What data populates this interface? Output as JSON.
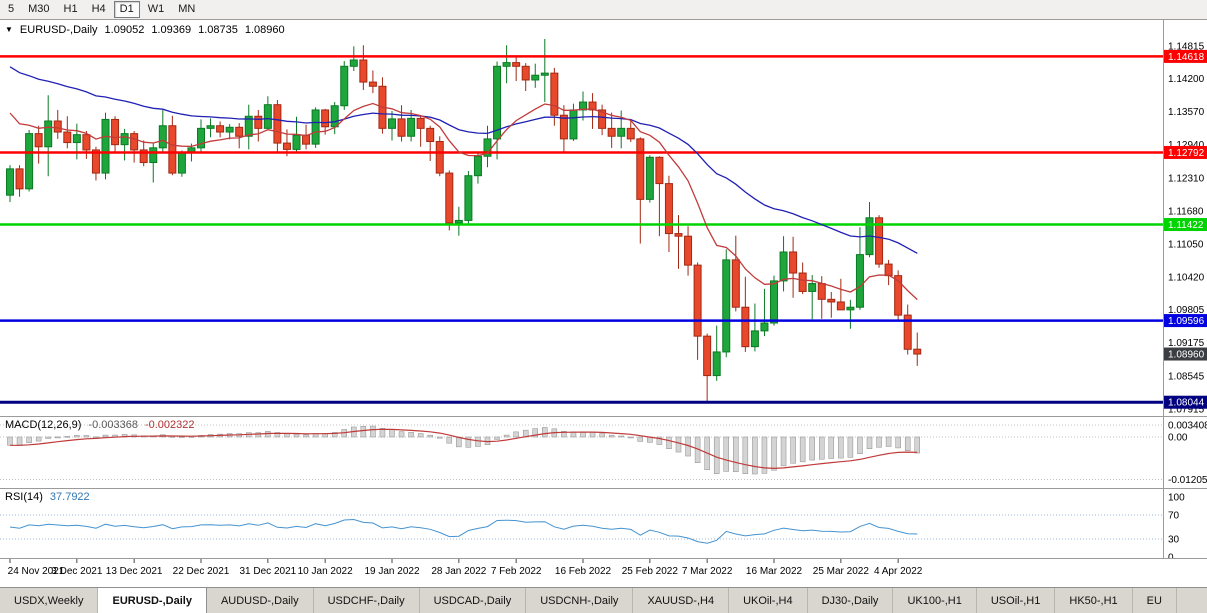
{
  "toolbar": {
    "timeframes": [
      {
        "label": "5",
        "active": false
      },
      {
        "label": "M30",
        "active": false
      },
      {
        "label": "H1",
        "active": false
      },
      {
        "label": "H4",
        "active": false
      },
      {
        "label": "D1",
        "active": true
      },
      {
        "label": "W1",
        "active": false
      },
      {
        "label": "MN",
        "active": false
      }
    ]
  },
  "chart_header": {
    "symbol": "EURUSD-,Daily",
    "open": "1.09052",
    "high": "1.09369",
    "low": "1.08735",
    "close": "1.08960"
  },
  "indicators": {
    "macd": {
      "name": "MACD(12,26,9)",
      "value_main": "-0.003368",
      "value_signal": "-0.002322",
      "axis": [
        {
          "text": "0.003408",
          "value": 0.003408
        },
        {
          "text": "0.00",
          "value": 0
        },
        {
          "text": "-0.012058",
          "value": -0.012058
        }
      ]
    },
    "rsi": {
      "name": "RSI(14)",
      "value": "37.7922",
      "axis": [
        {
          "text": "100",
          "value": 100
        },
        {
          "text": "70",
          "value": 70
        },
        {
          "text": "30",
          "value": 30
        },
        {
          "text": "0",
          "value": 0
        }
      ],
      "levels": [
        70,
        30
      ]
    }
  },
  "price_axis": {
    "ticks": [
      {
        "text": "1.14815",
        "value": 1.14815
      },
      {
        "text": "1.14200",
        "value": 1.142
      },
      {
        "text": "1.13570",
        "value": 1.1357
      },
      {
        "text": "1.12940",
        "value": 1.1294
      },
      {
        "text": "1.12310",
        "value": 1.1231
      },
      {
        "text": "1.11680",
        "value": 1.1168
      },
      {
        "text": "1.11050",
        "value": 1.1105
      },
      {
        "text": "1.10420",
        "value": 1.1042
      },
      {
        "text": "1.09805",
        "value": 1.09805
      },
      {
        "text": "1.09175",
        "value": 1.09175
      },
      {
        "text": "1.08545",
        "value": 1.08545
      },
      {
        "text": "1.07915",
        "value": 1.07915
      }
    ]
  },
  "chart_data": {
    "type": "candlestick",
    "symbol": "EURUSD",
    "timeframe": "Daily",
    "plot": {
      "pmax": 1.1531,
      "pmin": 1.0782
    },
    "colors": {
      "bull": "#1ea53c",
      "bull_border": "#0b7a24",
      "bear": "#e8482c",
      "bear_border": "#a32812"
    },
    "hlines": [
      {
        "price": 1.14618,
        "label": "1.14618",
        "color": "#ff0000",
        "width": 2.5
      },
      {
        "price": 1.12792,
        "label": "1.12792",
        "color": "#ff0000",
        "width": 2.5
      },
      {
        "price": 1.11422,
        "label": "1.11422",
        "color": "#00d400",
        "width": 2.5
      },
      {
        "price": 1.09596,
        "label": "1.09596",
        "color": "#0202e0",
        "width": 2.5
      },
      {
        "price": 1.08044,
        "label": "1.08044",
        "color": "#000080",
        "width": 3
      }
    ],
    "current_price": {
      "price": 1.0896,
      "label": "1.08960",
      "color": "#3a3d42"
    },
    "moving_averages": [
      {
        "name": "ma-slow-line",
        "period": 40,
        "seed": 1.1452,
        "color": "#2020b4"
      },
      {
        "name": "ma-fast-line",
        "period": 13,
        "seed": 1.1372,
        "color": "#c23b3b"
      }
    ],
    "macd_settings": {
      "fast": 12,
      "slow": 26,
      "signal": 9,
      "seed_fast_offset": -0.0008,
      "seed_slow_offset": 0.0018,
      "hist_color": "#d4d4d4",
      "hist_border": "#8c8c8c",
      "signal_color": "#c03a3a"
    },
    "rsi_settings": {
      "period": 14,
      "color": "#4593d0",
      "seed_gain": 0.0035,
      "seed_loss": 0.0035
    },
    "x_labels": [
      {
        "text": "24 Nov 2021",
        "bar": 0
      },
      {
        "text": "3 Dec 2021",
        "bar": 7
      },
      {
        "text": "13 Dec 2021",
        "bar": 13
      },
      {
        "text": "22 Dec 2021",
        "bar": 20
      },
      {
        "text": "31 Dec 2021",
        "bar": 27
      },
      {
        "text": "10 Jan 2022",
        "bar": 33
      },
      {
        "text": "19 Jan 2022",
        "bar": 40
      },
      {
        "text": "28 Jan 2022",
        "bar": 47
      },
      {
        "text": "7 Feb 2022",
        "bar": 53
      },
      {
        "text": "16 Feb 2022",
        "bar": 60
      },
      {
        "text": "25 Feb 2022",
        "bar": 67
      },
      {
        "text": "7 Mar 2022",
        "bar": 73
      },
      {
        "text": "16 Mar 2022",
        "bar": 80
      },
      {
        "text": "25 Mar 2022",
        "bar": 87
      },
      {
        "text": "4 Apr 2022",
        "bar": 93
      }
    ],
    "candles": [
      [
        1.1198,
        1.1255,
        1.1185,
        1.1248
      ],
      [
        1.1248,
        1.1255,
        1.1195,
        1.121
      ],
      [
        1.121,
        1.1322,
        1.1205,
        1.1315
      ],
      [
        1.1315,
        1.133,
        1.1258,
        1.129
      ],
      [
        1.129,
        1.1388,
        1.1234,
        1.1339
      ],
      [
        1.1339,
        1.136,
        1.1305,
        1.1318
      ],
      [
        1.1318,
        1.1348,
        1.1287,
        1.1298
      ],
      [
        1.1298,
        1.1334,
        1.1266,
        1.1313
      ],
      [
        1.1313,
        1.132,
        1.1267,
        1.1284
      ],
      [
        1.1284,
        1.129,
        1.1226,
        1.124
      ],
      [
        1.124,
        1.1355,
        1.1228,
        1.1342
      ],
      [
        1.1342,
        1.1348,
        1.128,
        1.1294
      ],
      [
        1.1294,
        1.1324,
        1.1264,
        1.1315
      ],
      [
        1.1315,
        1.132,
        1.126,
        1.1284
      ],
      [
        1.1284,
        1.1302,
        1.1253,
        1.126
      ],
      [
        1.126,
        1.1298,
        1.1222,
        1.1288
      ],
      [
        1.1288,
        1.136,
        1.128,
        1.133
      ],
      [
        1.133,
        1.1349,
        1.1236,
        1.124
      ],
      [
        1.124,
        1.1283,
        1.1233,
        1.128
      ],
      [
        1.128,
        1.1296,
        1.1262,
        1.1288
      ],
      [
        1.1288,
        1.1342,
        1.1279,
        1.1325
      ],
      [
        1.1325,
        1.1344,
        1.1308,
        1.133
      ],
      [
        1.133,
        1.1338,
        1.1308,
        1.1318
      ],
      [
        1.1318,
        1.1333,
        1.1304,
        1.1327
      ],
      [
        1.1327,
        1.1335,
        1.1287,
        1.131
      ],
      [
        1.131,
        1.137,
        1.1285,
        1.1348
      ],
      [
        1.1348,
        1.136,
        1.13,
        1.1325
      ],
      [
        1.1325,
        1.1386,
        1.1321,
        1.137
      ],
      [
        1.137,
        1.1379,
        1.1279,
        1.1297
      ],
      [
        1.1297,
        1.1323,
        1.1272,
        1.1285
      ],
      [
        1.1285,
        1.1347,
        1.1281,
        1.1312
      ],
      [
        1.1312,
        1.1332,
        1.1285,
        1.1295
      ],
      [
        1.1295,
        1.1365,
        1.1288,
        1.136
      ],
      [
        1.136,
        1.1362,
        1.1313,
        1.1328
      ],
      [
        1.1328,
        1.1375,
        1.1314,
        1.1368
      ],
      [
        1.1368,
        1.1453,
        1.136,
        1.1443
      ],
      [
        1.1443,
        1.1481,
        1.1434,
        1.1455
      ],
      [
        1.1455,
        1.1483,
        1.1398,
        1.1413
      ],
      [
        1.1413,
        1.1435,
        1.1392,
        1.1405
      ],
      [
        1.1405,
        1.1422,
        1.1315,
        1.1325
      ],
      [
        1.1325,
        1.1358,
        1.1302,
        1.1343
      ],
      [
        1.1343,
        1.1369,
        1.13,
        1.131
      ],
      [
        1.131,
        1.136,
        1.13,
        1.1344
      ],
      [
        1.1344,
        1.135,
        1.129,
        1.1325
      ],
      [
        1.1325,
        1.133,
        1.1263,
        1.13
      ],
      [
        1.13,
        1.131,
        1.1234,
        1.124
      ],
      [
        1.124,
        1.1245,
        1.1131,
        1.1145
      ],
      [
        1.1145,
        1.1176,
        1.1121,
        1.115
      ],
      [
        1.115,
        1.1244,
        1.1141,
        1.1235
      ],
      [
        1.1235,
        1.1279,
        1.122,
        1.1272
      ],
      [
        1.1272,
        1.133,
        1.1251,
        1.1305
      ],
      [
        1.1305,
        1.1452,
        1.1266,
        1.1443
      ],
      [
        1.1443,
        1.1483,
        1.1411,
        1.145
      ],
      [
        1.145,
        1.146,
        1.1415,
        1.1443
      ],
      [
        1.1443,
        1.1449,
        1.1396,
        1.1417
      ],
      [
        1.1417,
        1.1448,
        1.1402,
        1.1426
      ],
      [
        1.1426,
        1.1495,
        1.1375,
        1.143
      ],
      [
        1.143,
        1.144,
        1.133,
        1.135
      ],
      [
        1.135,
        1.1369,
        1.128,
        1.1305
      ],
      [
        1.1305,
        1.1372,
        1.1301,
        1.136
      ],
      [
        1.136,
        1.1395,
        1.134,
        1.1375
      ],
      [
        1.1375,
        1.1392,
        1.1324,
        1.136
      ],
      [
        1.136,
        1.137,
        1.1312,
        1.1325
      ],
      [
        1.1325,
        1.1355,
        1.1288,
        1.131
      ],
      [
        1.131,
        1.1359,
        1.1287,
        1.1325
      ],
      [
        1.1325,
        1.1343,
        1.1299,
        1.1305
      ],
      [
        1.1305,
        1.1308,
        1.1106,
        1.119
      ],
      [
        1.119,
        1.1274,
        1.1184,
        1.127
      ],
      [
        1.127,
        1.1272,
        1.112,
        1.122
      ],
      [
        1.122,
        1.1235,
        1.109,
        1.1125
      ],
      [
        1.1125,
        1.116,
        1.1058,
        1.112
      ],
      [
        1.112,
        1.1139,
        1.1045,
        1.1065
      ],
      [
        1.1065,
        1.107,
        1.0885,
        1.093
      ],
      [
        1.093,
        1.0935,
        1.0806,
        1.0855
      ],
      [
        1.0855,
        1.095,
        1.0845,
        1.09
      ],
      [
        1.09,
        1.1095,
        1.089,
        1.1075
      ],
      [
        1.1075,
        1.1121,
        1.0977,
        1.0985
      ],
      [
        1.0985,
        1.1043,
        1.09,
        1.091
      ],
      [
        1.091,
        1.0992,
        1.0901,
        1.094
      ],
      [
        1.094,
        1.102,
        1.093,
        1.0955
      ],
      [
        1.0955,
        1.1045,
        1.095,
        1.1035
      ],
      [
        1.1035,
        1.112,
        1.1015,
        1.109
      ],
      [
        1.109,
        1.1119,
        1.1003,
        1.105
      ],
      [
        1.105,
        1.107,
        1.101,
        1.1015
      ],
      [
        1.1015,
        1.1046,
        1.0962,
        1.103
      ],
      [
        1.103,
        1.1044,
        1.0963,
        1.1
      ],
      [
        1.1,
        1.1014,
        1.0965,
        1.0995
      ],
      [
        1.0995,
        1.1039,
        1.098,
        1.098
      ],
      [
        1.098,
        1.0999,
        1.0944,
        1.0985
      ],
      [
        1.0985,
        1.1137,
        1.098,
        1.1085
      ],
      [
        1.1085,
        1.1185,
        1.108,
        1.1155
      ],
      [
        1.1155,
        1.116,
        1.106,
        1.1067
      ],
      [
        1.1067,
        1.1075,
        1.1027,
        1.1045
      ],
      [
        1.1045,
        1.1055,
        1.096,
        1.097
      ],
      [
        1.097,
        1.099,
        1.0895,
        1.0905
      ],
      [
        1.09052,
        1.09369,
        1.08735,
        1.0896
      ]
    ]
  },
  "tabs": {
    "items": [
      {
        "label": "USDX,Weekly",
        "active": false
      },
      {
        "label": "EURUSD-,Daily",
        "active": true
      },
      {
        "label": "AUDUSD-,Daily",
        "active": false
      },
      {
        "label": "USDCHF-,Daily",
        "active": false
      },
      {
        "label": "USDCAD-,Daily",
        "active": false
      },
      {
        "label": "USDCNH-,Daily",
        "active": false
      },
      {
        "label": "XAUUSD-,H4",
        "active": false
      },
      {
        "label": "UKOil-,H4",
        "active": false
      },
      {
        "label": "DJ30-,Daily",
        "active": false
      },
      {
        "label": "UK100-,H1",
        "active": false
      },
      {
        "label": "USOil-,H1",
        "active": false
      },
      {
        "label": "HK50-,H1",
        "active": false
      },
      {
        "label": "EU",
        "active": false
      }
    ]
  }
}
